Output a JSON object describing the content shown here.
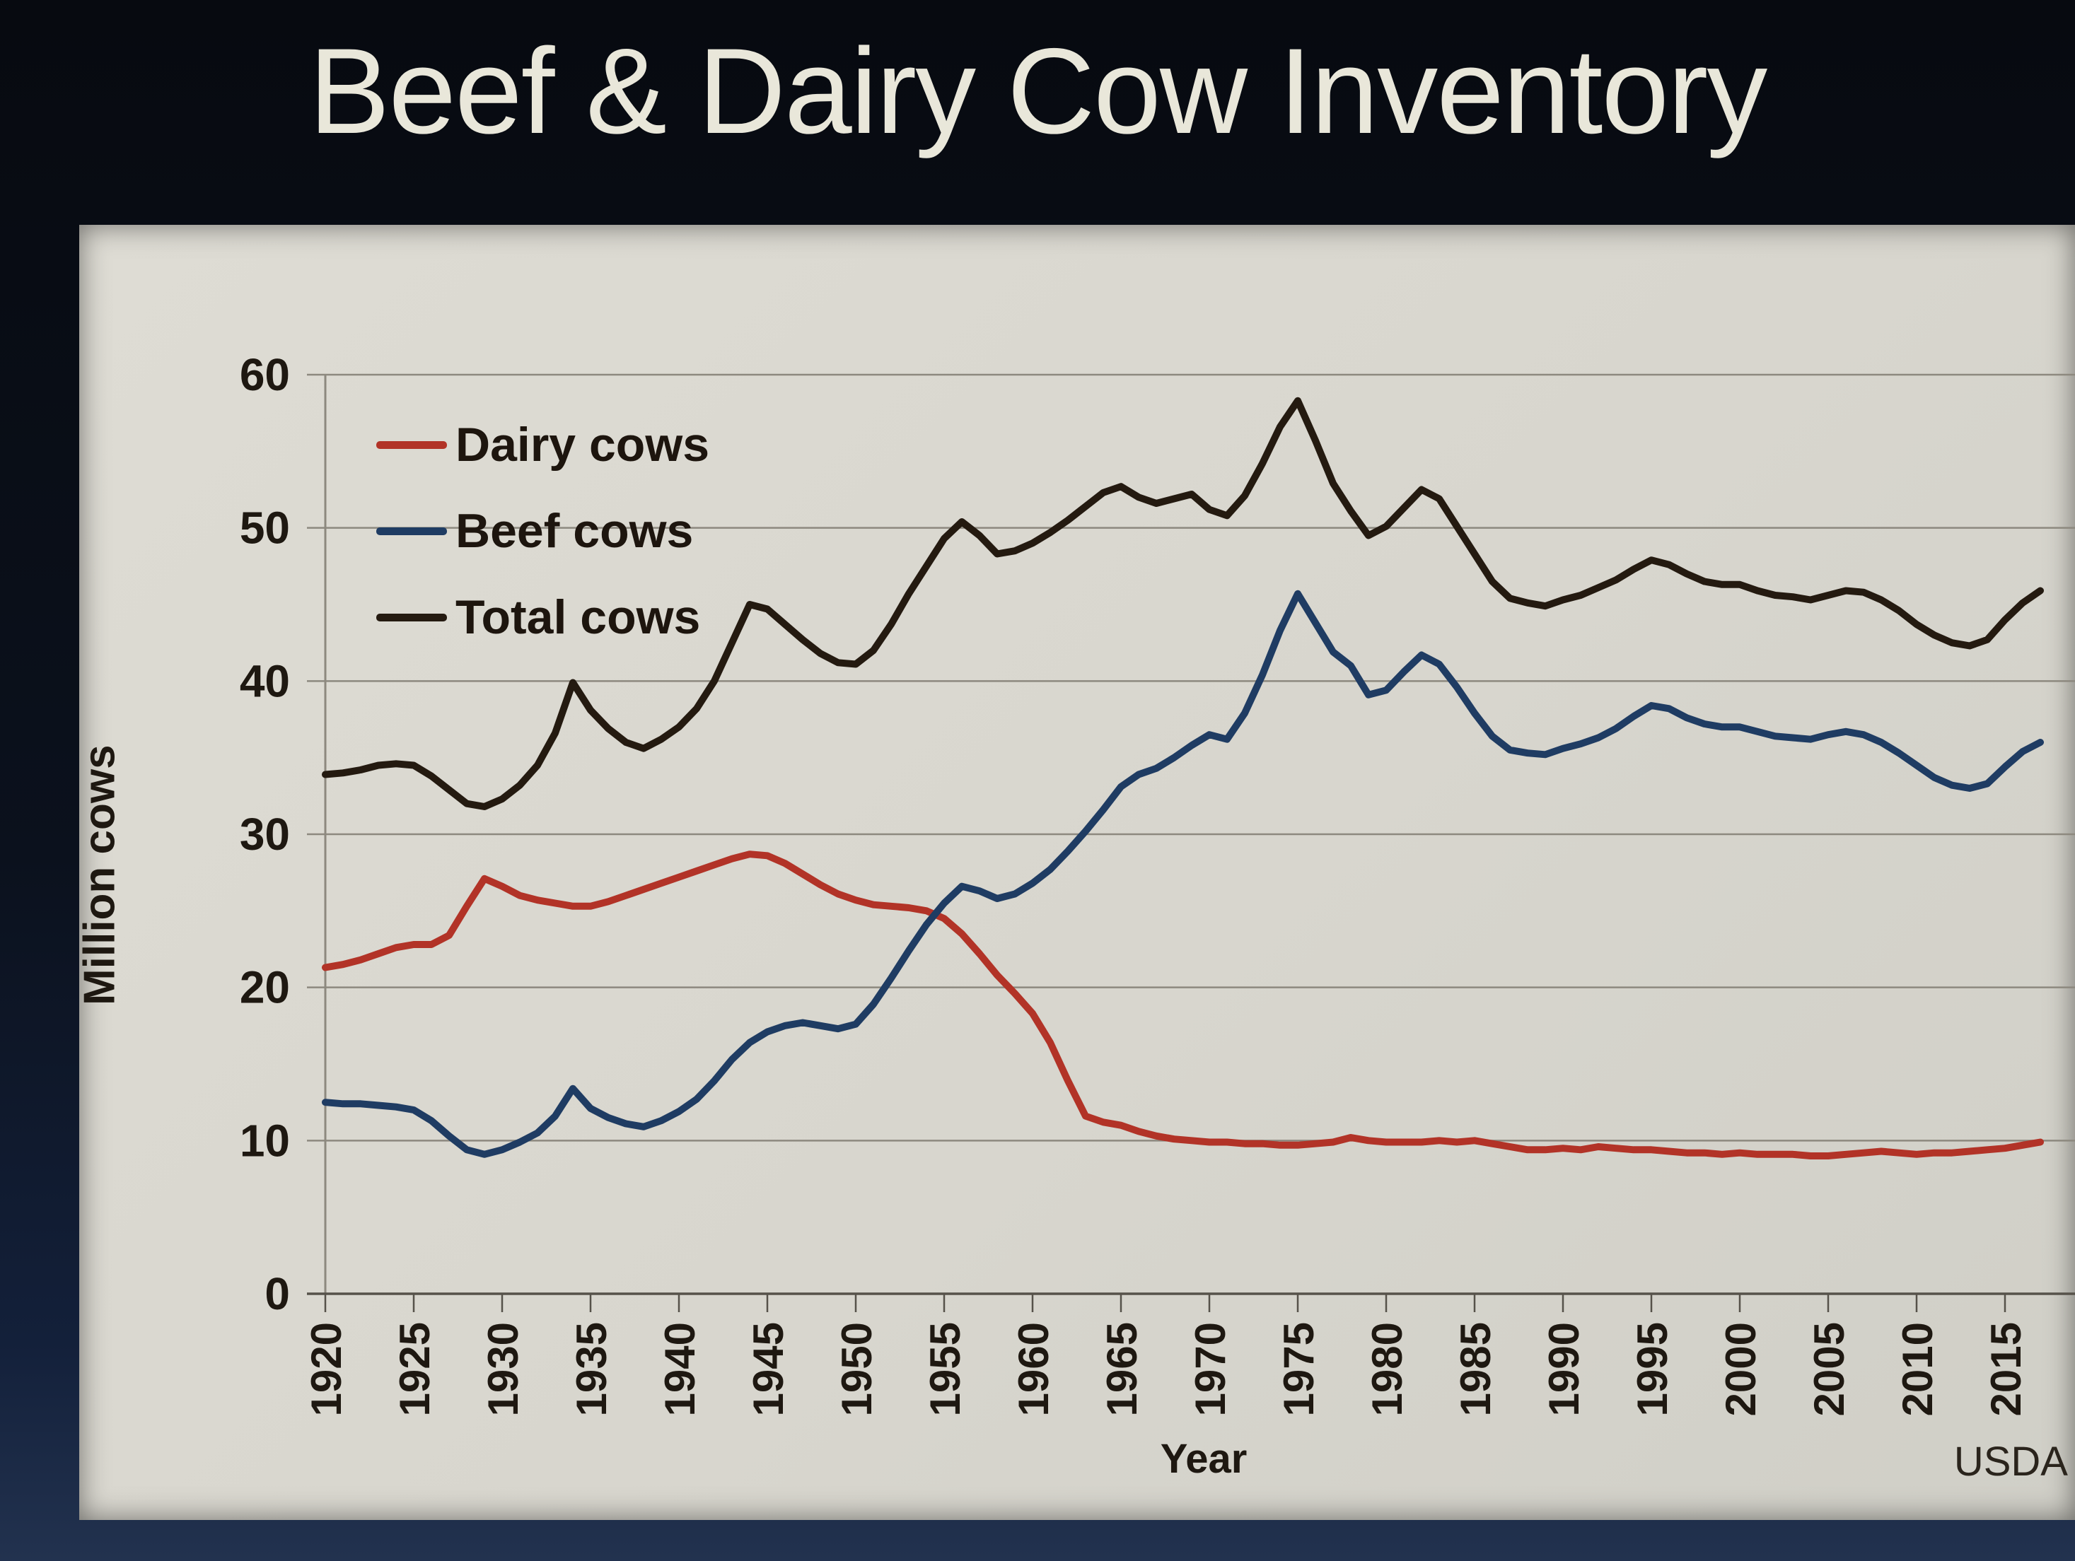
{
  "slide": {
    "title": "Beef & Dairy Cow Inventory",
    "source_note": "USDA",
    "background_color": "#0b111d",
    "paper_color": "#d8d6ce"
  },
  "chart_data": {
    "type": "line",
    "title": "Beef & Dairy Cow Inventory",
    "xlabel": "Year",
    "ylabel": "Million cows",
    "ylim": [
      0,
      60
    ],
    "xlim": [
      1920,
      2017
    ],
    "y_ticks": [
      0,
      10,
      20,
      30,
      40,
      50,
      60
    ],
    "x_tick_years": [
      1920,
      1925,
      1930,
      1935,
      1940,
      1945,
      1950,
      1955,
      1960,
      1965,
      1970,
      1975,
      1980,
      1985,
      1990,
      1995,
      2000,
      2005,
      2010,
      2015
    ],
    "grid": "horizontal-only",
    "gridline_color": "#8d897f",
    "axis_color": "#56524a",
    "legend_position": "top-left-inside",
    "x": [
      1920,
      1921,
      1922,
      1923,
      1924,
      1925,
      1926,
      1927,
      1928,
      1929,
      1930,
      1931,
      1932,
      1933,
      1934,
      1935,
      1936,
      1937,
      1938,
      1939,
      1940,
      1941,
      1942,
      1943,
      1944,
      1945,
      1946,
      1947,
      1948,
      1949,
      1950,
      1951,
      1952,
      1953,
      1954,
      1955,
      1956,
      1957,
      1958,
      1959,
      1960,
      1961,
      1962,
      1963,
      1964,
      1965,
      1966,
      1967,
      1968,
      1969,
      1970,
      1971,
      1972,
      1973,
      1974,
      1975,
      1976,
      1977,
      1978,
      1979,
      1980,
      1981,
      1982,
      1983,
      1984,
      1985,
      1986,
      1987,
      1988,
      1989,
      1990,
      1991,
      1992,
      1993,
      1994,
      1995,
      1996,
      1997,
      1998,
      1999,
      2000,
      2001,
      2002,
      2003,
      2004,
      2005,
      2006,
      2007,
      2008,
      2009,
      2010,
      2011,
      2012,
      2013,
      2014,
      2015,
      2016,
      2017
    ],
    "series": [
      {
        "name": "Dairy cows",
        "color": "#b23327",
        "values": [
          21.3,
          21.5,
          21.8,
          22.2,
          22.6,
          22.8,
          22.8,
          23.4,
          25.3,
          27.1,
          26.6,
          26.0,
          25.7,
          25.5,
          25.3,
          25.3,
          25.6,
          26.0,
          26.4,
          26.8,
          27.2,
          27.6,
          28.0,
          28.4,
          28.7,
          28.6,
          28.1,
          27.4,
          26.7,
          26.1,
          25.7,
          25.4,
          25.3,
          25.2,
          25.0,
          24.5,
          23.5,
          22.2,
          20.8,
          19.6,
          18.3,
          16.4,
          13.9,
          11.6,
          11.2,
          11.0,
          10.6,
          10.3,
          10.1,
          10.0,
          9.9,
          9.9,
          9.8,
          9.8,
          9.7,
          9.7,
          9.8,
          9.9,
          10.2,
          10.0,
          9.9,
          9.9,
          9.9,
          10.0,
          9.9,
          10.0,
          9.8,
          9.6,
          9.4,
          9.4,
          9.5,
          9.4,
          9.6,
          9.5,
          9.4,
          9.4,
          9.3,
          9.2,
          9.2,
          9.1,
          9.2,
          9.1,
          9.1,
          9.1,
          9.0,
          9.0,
          9.1,
          9.2,
          9.3,
          9.2,
          9.1,
          9.2,
          9.2,
          9.3,
          9.4,
          9.5,
          9.7,
          9.9
        ]
      },
      {
        "name": "Beef cows",
        "color": "#1f3c63",
        "values": [
          12.5,
          12.4,
          12.4,
          12.3,
          12.2,
          12.0,
          11.3,
          10.3,
          9.4,
          9.1,
          9.4,
          9.9,
          10.5,
          11.6,
          13.4,
          12.1,
          11.5,
          11.1,
          10.9,
          11.3,
          11.9,
          12.7,
          13.9,
          15.3,
          16.4,
          17.1,
          17.5,
          17.7,
          17.5,
          17.3,
          17.6,
          18.9,
          20.6,
          22.4,
          24.1,
          25.5,
          26.6,
          26.3,
          25.8,
          26.1,
          26.8,
          27.7,
          28.9,
          30.2,
          31.6,
          33.1,
          33.9,
          34.3,
          35.0,
          35.8,
          36.5,
          36.2,
          37.9,
          40.4,
          43.3,
          45.7,
          43.8,
          41.9,
          41.0,
          39.1,
          39.4,
          40.6,
          41.7,
          41.1,
          39.6,
          37.9,
          36.4,
          35.5,
          35.3,
          35.2,
          35.6,
          35.9,
          36.3,
          36.9,
          37.7,
          38.4,
          38.2,
          37.6,
          37.2,
          37.0,
          37.0,
          36.7,
          36.4,
          36.3,
          36.2,
          36.5,
          36.7,
          36.5,
          36.0,
          35.3,
          34.5,
          33.7,
          33.2,
          33.0,
          33.3,
          34.4,
          35.4,
          36.0
        ]
      },
      {
        "name": "Total cows",
        "color": "#241a10",
        "values": [
          33.9,
          34.0,
          34.2,
          34.5,
          34.6,
          34.5,
          33.8,
          32.9,
          32.0,
          31.8,
          32.3,
          33.2,
          34.5,
          36.6,
          39.9,
          38.1,
          36.9,
          36.0,
          35.6,
          36.2,
          37.0,
          38.2,
          40.0,
          42.5,
          45.0,
          44.7,
          43.7,
          42.7,
          41.8,
          41.2,
          41.1,
          42.0,
          43.7,
          45.7,
          47.5,
          49.3,
          50.4,
          49.5,
          48.3,
          48.5,
          49.0,
          49.7,
          50.5,
          51.4,
          52.3,
          52.7,
          52.0,
          51.6,
          51.9,
          52.2,
          51.2,
          50.8,
          52.1,
          54.2,
          56.6,
          58.3,
          55.7,
          52.9,
          51.1,
          49.5,
          50.1,
          51.3,
          52.5,
          51.9,
          50.1,
          48.3,
          46.5,
          45.4,
          45.1,
          44.9,
          45.3,
          45.6,
          46.1,
          46.6,
          47.3,
          47.9,
          47.6,
          47.0,
          46.5,
          46.3,
          46.3,
          45.9,
          45.6,
          45.5,
          45.3,
          45.6,
          45.9,
          45.8,
          45.3,
          44.6,
          43.7,
          43.0,
          42.5,
          42.3,
          42.7,
          44.0,
          45.1,
          45.9
        ]
      }
    ]
  }
}
